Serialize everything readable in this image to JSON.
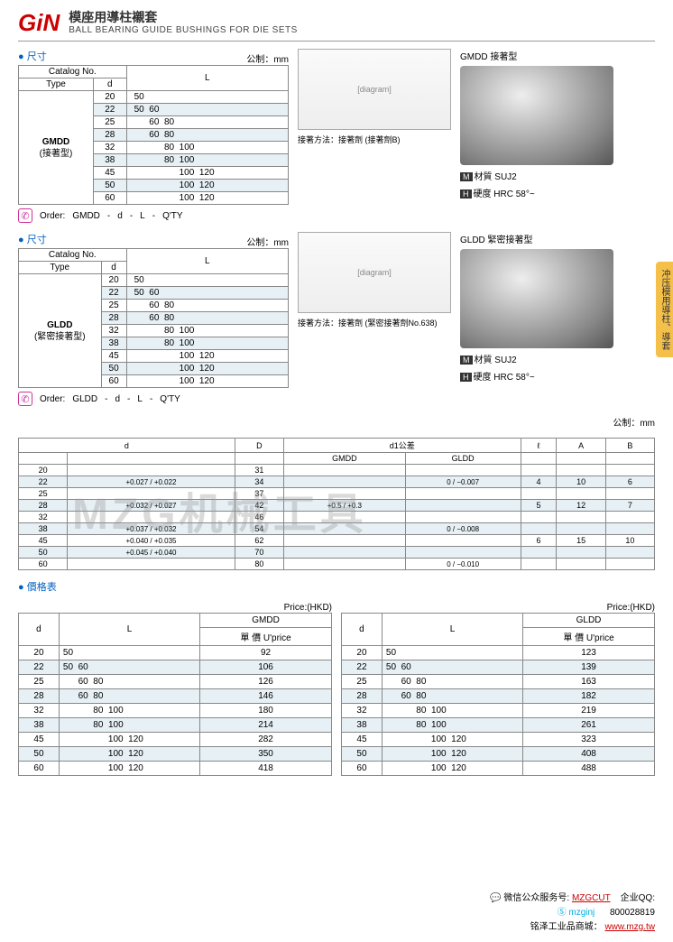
{
  "header": {
    "logo": "GiN",
    "title_cn": "模座用導柱襯套",
    "title_en": "BALL BEARING GUIDE BUSHINGS FOR DIE SETS"
  },
  "side_tab": "冲压模用導柱、導套",
  "watermark": "MZG机械工具",
  "labels": {
    "size": "● 尺寸",
    "unit": "公制：mm",
    "catalog": "Catalog No.",
    "type": "Type",
    "order": "Order:",
    "price_table": "● 價格表",
    "price_hkd": "Price:(HKD)",
    "unit_price": "單 價 U'price",
    "material": "材質",
    "hardness": "硬度",
    "mat_val": "SUJ2",
    "hard_val": "HRC 58°~",
    "d1_tol": "d1公差",
    "method1": "接著方法：接著劑 (接著劑B)",
    "method2": "接著方法：接著劑 (緊密接著劑No.638)",
    "gmdd_photo": "GMDD 接著型",
    "gldd_photo": "GLDD 緊密接著型"
  },
  "size_tables": [
    {
      "type_code": "GMDD",
      "type_note": "(接著型)",
      "order_fmt": [
        "GMDD",
        "-",
        "d",
        "-",
        "L",
        "-",
        "Q'TY"
      ],
      "rows": [
        {
          "d": "20",
          "L": "50"
        },
        {
          "d": "22",
          "L": "50  60"
        },
        {
          "d": "25",
          "L": "      60  80"
        },
        {
          "d": "28",
          "L": "      60  80"
        },
        {
          "d": "32",
          "L": "            80  100"
        },
        {
          "d": "38",
          "L": "            80  100"
        },
        {
          "d": "45",
          "L": "                  100  120"
        },
        {
          "d": "50",
          "L": "                  100  120"
        },
        {
          "d": "60",
          "L": "                  100  120"
        }
      ]
    },
    {
      "type_code": "GLDD",
      "type_note": "(緊密接著型)",
      "order_fmt": [
        "GLDD",
        "-",
        "d",
        "-",
        "L",
        "-",
        "Q'TY"
      ],
      "rows": [
        {
          "d": "20",
          "L": "50"
        },
        {
          "d": "22",
          "L": "50  60"
        },
        {
          "d": "25",
          "L": "      60  80"
        },
        {
          "d": "28",
          "L": "      60  80"
        },
        {
          "d": "32",
          "L": "            80  100"
        },
        {
          "d": "38",
          "L": "            80  100"
        },
        {
          "d": "45",
          "L": "                  100  120"
        },
        {
          "d": "50",
          "L": "                  100  120"
        },
        {
          "d": "60",
          "L": "                  100  120"
        }
      ]
    }
  ],
  "tol_table": {
    "header": [
      "d",
      "",
      "D",
      "GMDD",
      "GLDD",
      "ℓ",
      "A",
      "B"
    ],
    "rows": [
      {
        "d": "20",
        "dt": "",
        "D": "31",
        "gm": "",
        "gl": "",
        "l": "",
        "A": "",
        "B": ""
      },
      {
        "d": "22",
        "dt": "+0.027 / +0.022",
        "D": "34",
        "gm": "",
        "gl": "0 / −0.007",
        "l": "4",
        "A": "10",
        "B": "6"
      },
      {
        "d": "25",
        "dt": "",
        "D": "37",
        "gm": "",
        "gl": "",
        "l": "",
        "A": "",
        "B": ""
      },
      {
        "d": "28",
        "dt": "+0.032 / +0.027",
        "D": "42",
        "gm": "+0.5 / +0.3",
        "gl": "",
        "l": "5",
        "A": "12",
        "B": "7"
      },
      {
        "d": "32",
        "dt": "",
        "D": "46",
        "gm": "",
        "gl": "",
        "l": "",
        "A": "",
        "B": ""
      },
      {
        "d": "38",
        "dt": "+0.037 / +0.032",
        "D": "54",
        "gm": "",
        "gl": "0 / −0.008",
        "l": "",
        "A": "",
        "B": ""
      },
      {
        "d": "45",
        "dt": "+0.040 / +0.035",
        "D": "62",
        "gm": "",
        "gl": "",
        "l": "6",
        "A": "15",
        "B": "10"
      },
      {
        "d": "50",
        "dt": "+0.045 / +0.040",
        "D": "70",
        "gm": "",
        "gl": "",
        "l": "",
        "A": "",
        "B": ""
      },
      {
        "d": "60",
        "dt": "",
        "D": "80",
        "gm": "",
        "gl": "0 / −0.010",
        "l": "",
        "A": "",
        "B": ""
      }
    ]
  },
  "price_tables": [
    {
      "code": "GMDD",
      "rows": [
        {
          "d": "20",
          "L": "50",
          "p": "92"
        },
        {
          "d": "22",
          "L": "50  60",
          "p": "106"
        },
        {
          "d": "25",
          "L": "      60  80",
          "p": "126"
        },
        {
          "d": "28",
          "L": "      60  80",
          "p": "146"
        },
        {
          "d": "32",
          "L": "            80  100",
          "p": "180"
        },
        {
          "d": "38",
          "L": "            80  100",
          "p": "214"
        },
        {
          "d": "45",
          "L": "                  100  120",
          "p": "282"
        },
        {
          "d": "50",
          "L": "                  100  120",
          "p": "350"
        },
        {
          "d": "60",
          "L": "                  100  120",
          "p": "418"
        }
      ]
    },
    {
      "code": "GLDD",
      "rows": [
        {
          "d": "20",
          "L": "50",
          "p": "123"
        },
        {
          "d": "22",
          "L": "50  60",
          "p": "139"
        },
        {
          "d": "25",
          "L": "      60  80",
          "p": "163"
        },
        {
          "d": "28",
          "L": "      60  80",
          "p": "182"
        },
        {
          "d": "32",
          "L": "            80  100",
          "p": "219"
        },
        {
          "d": "38",
          "L": "            80  100",
          "p": "261"
        },
        {
          "d": "45",
          "L": "                  100  120",
          "p": "323"
        },
        {
          "d": "50",
          "L": "                  100  120",
          "p": "408"
        },
        {
          "d": "60",
          "L": "                  100  120",
          "p": "488"
        }
      ]
    }
  ],
  "footer": {
    "wechat_label": "微信公众服务号:",
    "wechat": "MZGCUT",
    "qq_label": "企业QQ:",
    "skype": "mzginj",
    "qq": "800028819",
    "shop_label": "铭泽工业品商城：",
    "shop_url": "www.mzg.tw"
  }
}
